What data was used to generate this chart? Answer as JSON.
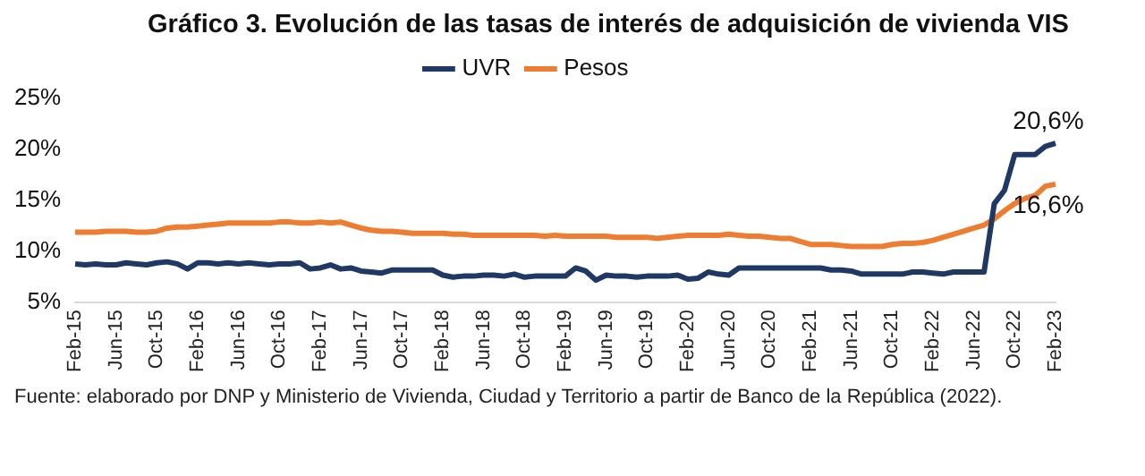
{
  "chart_data": {
    "type": "line",
    "title": "Gráfico 3. Evolución de las tasas de interés de adquisición de vivienda VIS",
    "categories": [
      "Feb-15",
      null,
      null,
      null,
      "Jun-15",
      null,
      null,
      null,
      "Oct-15",
      null,
      null,
      null,
      "Feb-16",
      null,
      null,
      null,
      "Jun-16",
      null,
      null,
      null,
      "Oct-16",
      null,
      null,
      null,
      "Feb-17",
      null,
      null,
      null,
      "Jun-17",
      null,
      null,
      null,
      "Oct-17",
      null,
      null,
      null,
      "Feb-18",
      null,
      null,
      null,
      "Jun-18",
      null,
      null,
      null,
      "Oct-18",
      null,
      null,
      null,
      "Feb-19",
      null,
      null,
      null,
      "Jun-19",
      null,
      null,
      null,
      "Oct-19",
      null,
      null,
      null,
      "Feb-20",
      null,
      null,
      null,
      "Jun-20",
      null,
      null,
      null,
      "Oct-20",
      null,
      null,
      null,
      "Feb-21",
      null,
      null,
      null,
      "Jun-21",
      null,
      null,
      null,
      "Oct-21",
      null,
      null,
      null,
      "Feb-22",
      null,
      null,
      null,
      "Jun-22",
      null,
      null,
      null,
      "Oct-22",
      null,
      null,
      null,
      "Feb-23"
    ],
    "series": [
      {
        "name": "UVR",
        "color": "#1f3864",
        "values": [
          8.8,
          8.7,
          8.8,
          8.7,
          8.7,
          8.9,
          8.8,
          8.7,
          8.9,
          9.0,
          8.8,
          8.3,
          8.9,
          8.9,
          8.8,
          8.9,
          8.8,
          8.9,
          8.8,
          8.7,
          8.8,
          8.8,
          8.9,
          8.3,
          8.4,
          8.7,
          8.3,
          8.4,
          8.1,
          8.0,
          7.9,
          8.2,
          8.2,
          8.2,
          8.2,
          8.2,
          7.7,
          7.5,
          7.6,
          7.6,
          7.7,
          7.7,
          7.6,
          7.8,
          7.5,
          7.6,
          7.6,
          7.6,
          7.6,
          8.4,
          8.1,
          7.2,
          7.7,
          7.6,
          7.6,
          7.5,
          7.6,
          7.6,
          7.6,
          7.7,
          7.3,
          7.4,
          8.0,
          7.8,
          7.7,
          8.4,
          8.4,
          8.4,
          8.4,
          8.4,
          8.4,
          8.4,
          8.4,
          8.4,
          8.2,
          8.2,
          8.1,
          7.8,
          7.8,
          7.8,
          7.8,
          7.8,
          8.0,
          8.0,
          7.9,
          7.8,
          8.0,
          8.0,
          8.0,
          8.0,
          14.7,
          16.0,
          19.5,
          19.5,
          19.5,
          20.3,
          20.6
        ]
      },
      {
        "name": "Pesos",
        "color": "#ed7d31",
        "values": [
          11.9,
          11.9,
          11.9,
          12.0,
          12.0,
          12.0,
          11.9,
          11.9,
          12.0,
          12.3,
          12.4,
          12.4,
          12.5,
          12.6,
          12.7,
          12.8,
          12.8,
          12.8,
          12.8,
          12.8,
          12.9,
          12.9,
          12.8,
          12.8,
          12.9,
          12.8,
          12.9,
          12.6,
          12.3,
          12.1,
          12.0,
          12.0,
          11.9,
          11.8,
          11.8,
          11.8,
          11.8,
          11.7,
          11.7,
          11.6,
          11.6,
          11.6,
          11.6,
          11.6,
          11.6,
          11.6,
          11.5,
          11.6,
          11.5,
          11.5,
          11.5,
          11.5,
          11.5,
          11.4,
          11.4,
          11.4,
          11.4,
          11.3,
          11.4,
          11.5,
          11.6,
          11.6,
          11.6,
          11.6,
          11.7,
          11.6,
          11.5,
          11.5,
          11.4,
          11.3,
          11.3,
          11.0,
          10.7,
          10.7,
          10.7,
          10.6,
          10.5,
          10.5,
          10.5,
          10.5,
          10.7,
          10.8,
          10.8,
          10.9,
          11.1,
          11.4,
          11.7,
          12.0,
          12.3,
          12.6,
          13.2,
          14.0,
          14.7,
          15.2,
          15.5,
          16.4,
          16.6
        ]
      }
    ],
    "ylim": [
      5,
      25
    ],
    "yticks": [
      {
        "value": 5,
        "label": "5%"
      },
      {
        "value": 10,
        "label": "10%"
      },
      {
        "value": 15,
        "label": "15%"
      },
      {
        "value": 20,
        "label": "20%"
      },
      {
        "value": 25,
        "label": "25%"
      }
    ],
    "legend": "top",
    "marker": "none",
    "line_style": "solid",
    "annotations": [
      {
        "text": "20,6%",
        "x": "Feb-23",
        "y": 20.6
      },
      {
        "text": "16,6%",
        "x": "Feb-23",
        "y": 16.6
      },
      "Fuente: elaborado por DNP y Ministerio de Vivienda, Ciudad y Territorio a partir de Banco de la República (2022)."
    ]
  }
}
